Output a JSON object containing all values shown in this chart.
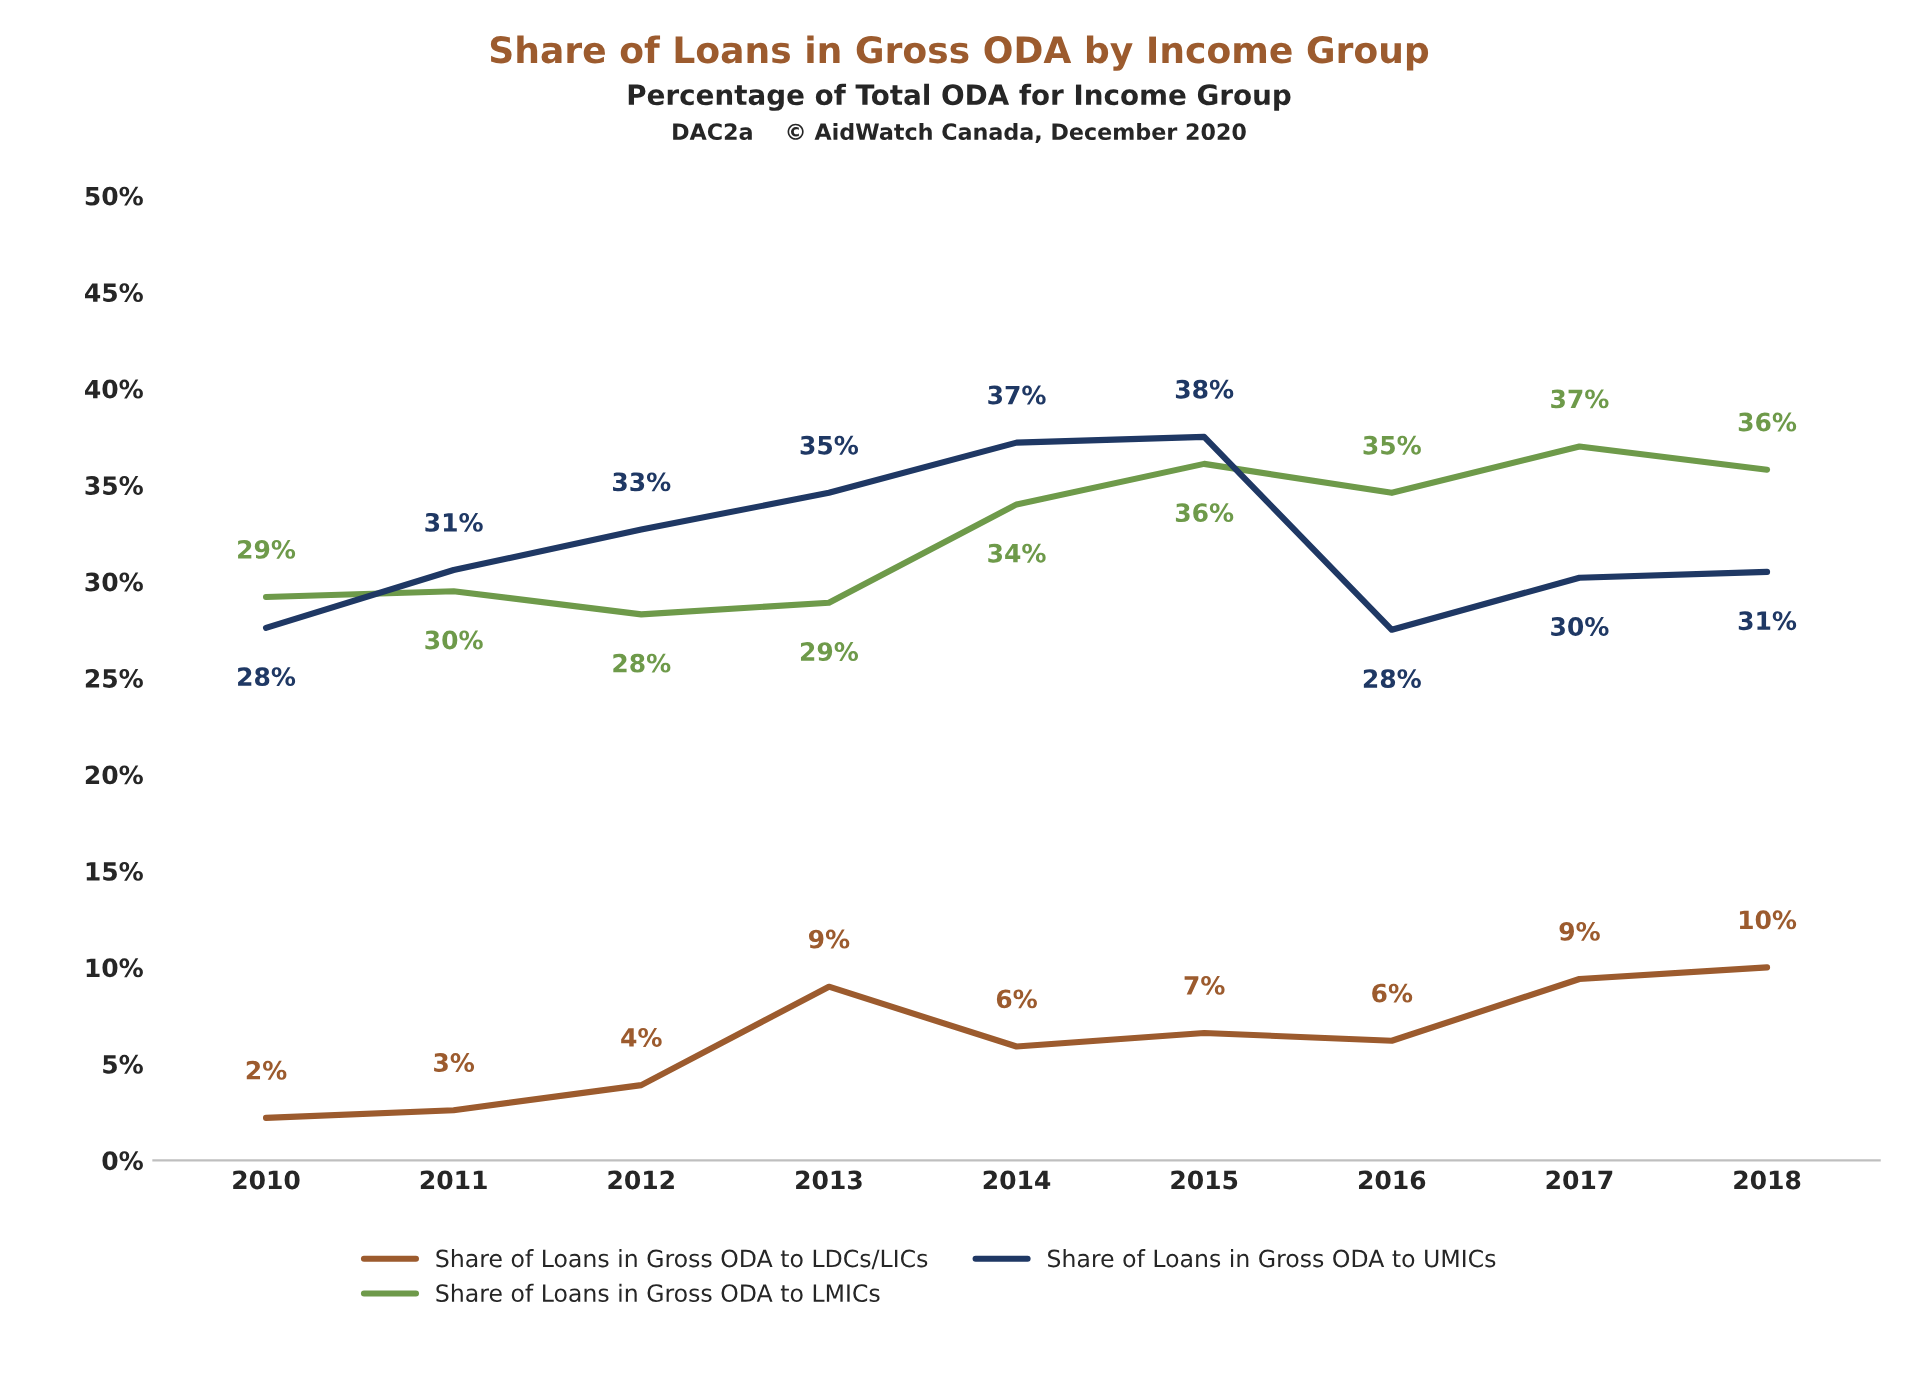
{
  "chart_data": {
    "type": "line",
    "title": "Share of Loans in Gross ODA by Income Group",
    "subtitle": "Percentage of Total ODA for Income Group",
    "annotations": [
      "DAC2a    © AidWatch Canada, December 2020"
    ],
    "categories": [
      "2010",
      "2011",
      "2012",
      "2013",
      "2014",
      "2015",
      "2016",
      "2017",
      "2018"
    ],
    "series": [
      {
        "name": "Share of Loans in Gross ODA to LDCs/LICs",
        "color": "#9c5b2e",
        "values": [
          2.2,
          2.6,
          3.9,
          9.0,
          5.9,
          6.6,
          6.2,
          9.4,
          10.0
        ],
        "value_labels": [
          "2%",
          "3%",
          "4%",
          "9%",
          "6%",
          "7%",
          "6%",
          "9%",
          "10%"
        ]
      },
      {
        "name": "Share of Loans in Gross ODA to LMICs",
        "color": "#6e9a4a",
        "values": [
          29.2,
          29.5,
          28.3,
          28.9,
          34.0,
          36.1,
          34.6,
          37.0,
          35.8
        ],
        "value_labels": [
          "29%",
          "30%",
          "28%",
          "29%",
          "34%",
          "36%",
          "35%",
          "37%",
          "36%"
        ]
      },
      {
        "name": "Share of Loans in Gross ODA to UMICs",
        "color": "#1f3864",
        "values": [
          27.6,
          30.6,
          32.7,
          34.6,
          37.2,
          37.5,
          27.5,
          30.2,
          30.5
        ],
        "value_labels": [
          "28%",
          "31%",
          "33%",
          "35%",
          "37%",
          "38%",
          "28%",
          "30%",
          "31%"
        ]
      }
    ],
    "ylim": [
      0,
      50
    ],
    "yticks": [
      {
        "value": 0,
        "label": "0%"
      },
      {
        "value": 5,
        "label": "5%"
      },
      {
        "value": 10,
        "label": "10%"
      },
      {
        "value": 15,
        "label": "15%"
      },
      {
        "value": 20,
        "label": "20%"
      },
      {
        "value": 25,
        "label": "25%"
      },
      {
        "value": 30,
        "label": "30%"
      },
      {
        "value": 35,
        "label": "35%"
      },
      {
        "value": 40,
        "label": "40%"
      },
      {
        "value": 45,
        "label": "45%"
      },
      {
        "value": 50,
        "label": "50%"
      }
    ],
    "grid": false,
    "legend": "bottom",
    "marker": "none",
    "line_style": "solid"
  }
}
